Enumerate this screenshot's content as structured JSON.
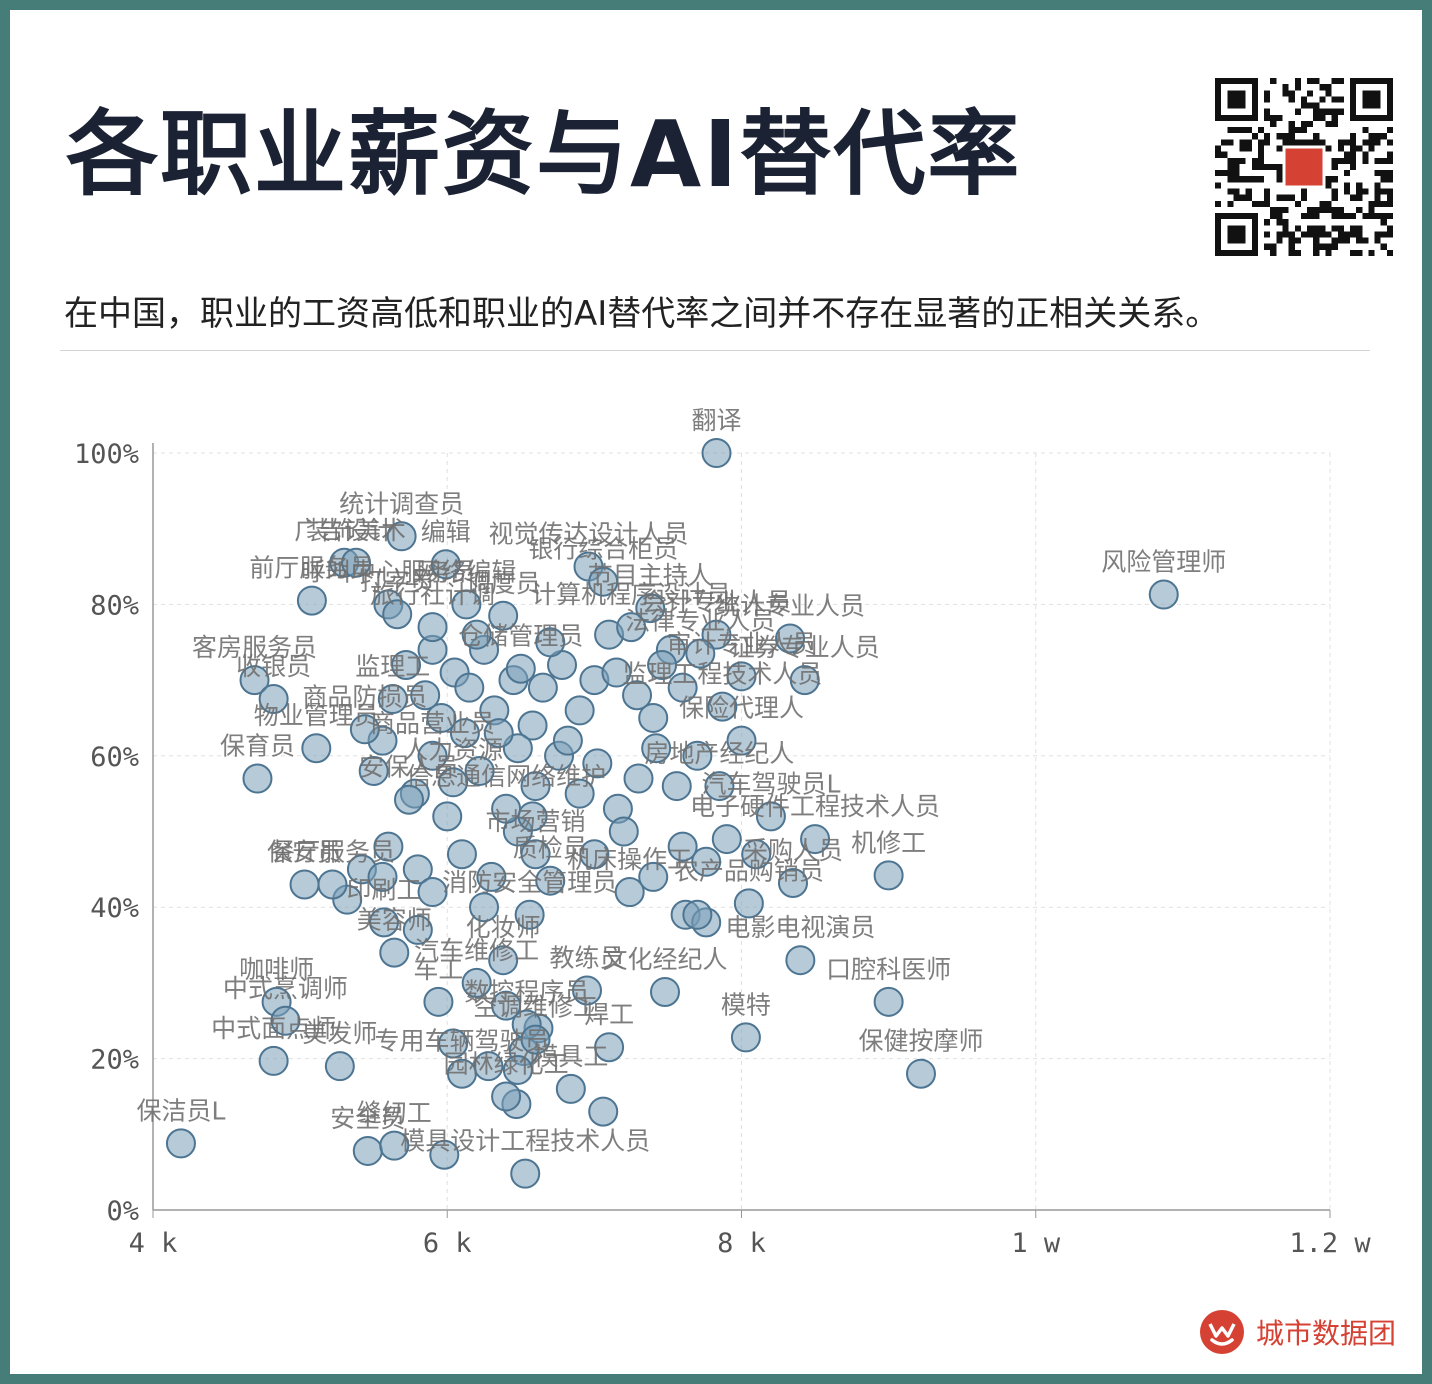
{
  "header": {
    "title": "各职业薪资与AI替代率",
    "subtitle": "在中国，职业的工资高低和职业的AI替代率之间并不存在显著的正相关关系。"
  },
  "brand": {
    "name": "城市数据团",
    "icon": "city-data-team-logo",
    "color": "#d54133"
  },
  "colors": {
    "background": "#477d78",
    "point_fill": "#7a9fb8",
    "point_stroke": "#4d7592",
    "label": "#707070",
    "title": "#1b2233"
  },
  "chart_data": {
    "type": "scatter",
    "title": "",
    "xlabel": "",
    "ylabel": "",
    "xlim": [
      4000,
      12000
    ],
    "ylim": [
      0,
      1
    ],
    "x_ticks": [
      4000,
      6000,
      8000,
      10000,
      12000
    ],
    "x_tick_labels": [
      "4 k",
      "6 k",
      "8 k",
      "1 w",
      "1.2 w"
    ],
    "y_ticks": [
      0,
      0.2,
      0.4,
      0.6,
      0.8,
      1.0
    ],
    "y_tick_labels": [
      "0%",
      "20%",
      "40%",
      "60%",
      "80%",
      "100%"
    ],
    "grid": true,
    "points": [
      {
        "label": "翻译",
        "x": 7830,
        "y": 1.0
      },
      {
        "label": "风险管理师",
        "x": 10870,
        "y": 0.813
      },
      {
        "label": "统计调查员",
        "x": 5690,
        "y": 0.89
      },
      {
        "label": "广告设计",
        "x": 5300,
        "y": 0.855
      },
      {
        "label": "装饰美术",
        "x": 5380,
        "y": 0.855
      },
      {
        "label": "编辑",
        "x": 5990,
        "y": 0.853
      },
      {
        "label": "视觉传达设计人员",
        "x": 6960,
        "y": 0.85
      },
      {
        "label": "银行综合柜员",
        "x": 7060,
        "y": 0.83
      },
      {
        "label": "前厅服务员",
        "x": 5080,
        "y": 0.805
      },
      {
        "label": "呼叫中心服务员",
        "x": 5600,
        "y": 0.8
      },
      {
        "label": "节目主持人",
        "x": 7380,
        "y": 0.795
      },
      {
        "label": "网络编辑",
        "x": 6130,
        "y": 0.8
      },
      {
        "label": "调度员",
        "x": 6380,
        "y": 0.785
      },
      {
        "label": "计算机程序设计员",
        "x": 7250,
        "y": 0.77
      },
      {
        "label": "会计专业人员",
        "x": 7830,
        "y": 0.76
      },
      {
        "label": "打字员",
        "x": 5660,
        "y": 0.787
      },
      {
        "label": "旅行社计调",
        "x": 5900,
        "y": 0.77
      },
      {
        "label": "客房服务员",
        "x": 4690,
        "y": 0.7
      },
      {
        "label": "收银员",
        "x": 4820,
        "y": 0.675
      },
      {
        "label": "统计专业人员",
        "x": 8330,
        "y": 0.755
      },
      {
        "label": "法律专业人员",
        "x": 7720,
        "y": 0.735
      },
      {
        "label": "仓储管理员",
        "x": 6500,
        "y": 0.715
      },
      {
        "label": "证券专业人员",
        "x": 8430,
        "y": 0.7
      },
      {
        "label": "审计专业人员",
        "x": 8000,
        "y": 0.705
      },
      {
        "label": "监理工程技术人员",
        "x": 7870,
        "y": 0.665
      },
      {
        "label": "监理工",
        "x": 5630,
        "y": 0.675
      },
      {
        "label": "商品防损员",
        "x": 5440,
        "y": 0.635
      },
      {
        "label": "保育员",
        "x": 4710,
        "y": 0.57
      },
      {
        "label": "物业管理员",
        "x": 5110,
        "y": 0.61
      },
      {
        "label": "商品营业员",
        "x": 5900,
        "y": 0.6
      },
      {
        "label": "人力资源",
        "x": 6040,
        "y": 0.565
      },
      {
        "label": "保险代理人",
        "x": 8000,
        "y": 0.62
      },
      {
        "label": "房地产经纪人",
        "x": 7850,
        "y": 0.56
      },
      {
        "label": "安保人员",
        "x": 5740,
        "y": 0.542
      },
      {
        "label": "信息通信网络维护",
        "x": 6400,
        "y": 0.53
      },
      {
        "label": "汽车驾驶员L",
        "x": 8200,
        "y": 0.52
      },
      {
        "label": "电子硬件工程技术人员",
        "x": 8500,
        "y": 0.49
      },
      {
        "label": "餐厅服务员",
        "x": 5220,
        "y": 0.43
      },
      {
        "label": "市场营销",
        "x": 6600,
        "y": 0.47
      },
      {
        "label": "质检员",
        "x": 6700,
        "y": 0.435
      },
      {
        "label": "机床操作工",
        "x": 7240,
        "y": 0.42
      },
      {
        "label": "采购人员",
        "x": 8350,
        "y": 0.432
      },
      {
        "label": "机修工",
        "x": 9000,
        "y": 0.442
      },
      {
        "label": "农产品购销员",
        "x": 8050,
        "y": 0.405
      },
      {
        "label": "印刷工",
        "x": 5570,
        "y": 0.38
      },
      {
        "label": "保安员",
        "x": 5030,
        "y": 0.43
      },
      {
        "label": "消防安全管理员",
        "x": 6560,
        "y": 0.39
      },
      {
        "label": "咖啡师",
        "x": 4840,
        "y": 0.275
      },
      {
        "label": "中式烹调师",
        "x": 4900,
        "y": 0.25
      },
      {
        "label": "中式面点师",
        "x": 4820,
        "y": 0.197
      },
      {
        "label": "美发师",
        "x": 5270,
        "y": 0.19
      },
      {
        "label": "美容师",
        "x": 5640,
        "y": 0.34
      },
      {
        "label": "化妆师",
        "x": 6380,
        "y": 0.33
      },
      {
        "label": "教练员",
        "x": 6950,
        "y": 0.29
      },
      {
        "label": "文化经纪人",
        "x": 7480,
        "y": 0.288
      },
      {
        "label": "电影电视演员",
        "x": 8400,
        "y": 0.33
      },
      {
        "label": "口腔科医师",
        "x": 9000,
        "y": 0.275
      },
      {
        "label": "模特",
        "x": 8030,
        "y": 0.228
      },
      {
        "label": "保健按摩师",
        "x": 9220,
        "y": 0.18
      },
      {
        "label": "汽车维修工",
        "x": 6200,
        "y": 0.3
      },
      {
        "label": "焊工",
        "x": 7100,
        "y": 0.215
      },
      {
        "label": "数控程序员",
        "x": 6540,
        "y": 0.245
      },
      {
        "label": "空调维修工",
        "x": 6600,
        "y": 0.225
      },
      {
        "label": "车工",
        "x": 5940,
        "y": 0.275
      },
      {
        "label": "专用车辆驾驶员",
        "x": 6100,
        "y": 0.18
      },
      {
        "label": "模具工",
        "x": 6840,
        "y": 0.16
      },
      {
        "label": "保洁员L",
        "x": 4190,
        "y": 0.088
      },
      {
        "label": "安全员",
        "x": 5460,
        "y": 0.078
      },
      {
        "label": "缝纫工",
        "x": 5640,
        "y": 0.085
      },
      {
        "label": "园林绿化工",
        "x": 6400,
        "y": 0.15
      },
      {
        "label": "模具设计工程技术人员",
        "x": 6530,
        "y": 0.048
      }
    ],
    "extra_points": [
      [
        5560,
        0.62
      ],
      [
        5720,
        0.72
      ],
      [
        5850,
        0.68
      ],
      [
        5960,
        0.65
      ],
      [
        6050,
        0.71
      ],
      [
        6150,
        0.69
      ],
      [
        6250,
        0.74
      ],
      [
        6320,
        0.66
      ],
      [
        6450,
        0.7
      ],
      [
        6580,
        0.64
      ],
      [
        6650,
        0.69
      ],
      [
        6780,
        0.72
      ],
      [
        6900,
        0.66
      ],
      [
        7000,
        0.7
      ],
      [
        7150,
        0.71
      ],
      [
        7290,
        0.68
      ],
      [
        7400,
        0.65
      ],
      [
        7520,
        0.74
      ],
      [
        7600,
        0.69
      ],
      [
        5900,
        0.74
      ],
      [
        6200,
        0.76
      ],
      [
        6700,
        0.75
      ],
      [
        7100,
        0.76
      ],
      [
        7460,
        0.72
      ],
      [
        5500,
        0.58
      ],
      [
        5780,
        0.55
      ],
      [
        6000,
        0.52
      ],
      [
        6220,
        0.58
      ],
      [
        6480,
        0.61
      ],
      [
        6600,
        0.56
      ],
      [
        6760,
        0.6
      ],
      [
        6900,
        0.55
      ],
      [
        7020,
        0.59
      ],
      [
        7160,
        0.53
      ],
      [
        7300,
        0.57
      ],
      [
        7420,
        0.61
      ],
      [
        7560,
        0.56
      ],
      [
        7700,
        0.6
      ],
      [
        5600,
        0.48
      ],
      [
        5800,
        0.45
      ],
      [
        6100,
        0.47
      ],
      [
        6300,
        0.44
      ],
      [
        6480,
        0.5
      ],
      [
        7000,
        0.47
      ],
      [
        7200,
        0.5
      ],
      [
        7400,
        0.44
      ],
      [
        7600,
        0.48
      ],
      [
        7760,
        0.46
      ],
      [
        7900,
        0.49
      ],
      [
        8100,
        0.47
      ],
      [
        5420,
        0.45
      ],
      [
        5320,
        0.41
      ],
      [
        5900,
        0.42
      ],
      [
        6250,
        0.4
      ],
      [
        7620,
        0.39
      ],
      [
        7760,
        0.38
      ],
      [
        7700,
        0.39
      ],
      [
        5560,
        0.44
      ],
      [
        5800,
        0.37
      ],
      [
        6400,
        0.27
      ],
      [
        6620,
        0.24
      ],
      [
        6040,
        0.22
      ],
      [
        6280,
        0.19
      ],
      [
        6520,
        0.21
      ],
      [
        7060,
        0.13
      ],
      [
        6470,
        0.14
      ],
      [
        5980,
        0.073
      ],
      [
        6480,
        0.185
      ],
      [
        6820,
        0.62
      ],
      [
        6580,
        0.52
      ],
      [
        6350,
        0.63
      ],
      [
        6120,
        0.63
      ]
    ]
  }
}
